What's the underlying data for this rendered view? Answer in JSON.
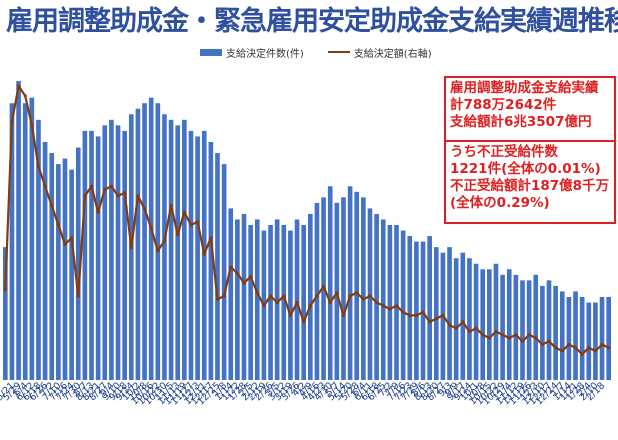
{
  "title": "雇用調整助成金・緊急雇用安定助成金支給実績週推移",
  "legend": {
    "bars": "支給決定件数(件)",
    "line": "支給決定額(右軸)"
  },
  "notes": {
    "box1": [
      "雇用調整助成金支給実績",
      "計788万2642件",
      "支給額計6兆3507億円"
    ],
    "box2": [
      "うち不正受給件数",
      "1221件(全体の0.01%)",
      "不正受給額計187億8千万",
      "(全体の0.29%)"
    ]
  },
  "colors": {
    "title": "#2f4f9f",
    "bar": "#4472c4",
    "line": "#843c0c",
    "note": "#e02020"
  },
  "chart_data": {
    "type": "bar",
    "x": [
      "5/15",
      "5/22",
      "5/29",
      "6/4",
      "6/12",
      "6/18",
      "6/26",
      "7/2",
      "7/10",
      "7/16",
      "7/24",
      "7/30",
      "8/7",
      "8/13",
      "8/21",
      "8/27",
      "9/4",
      "9/10",
      "9/18",
      "9/24",
      "10/2",
      "10/8",
      "10/16",
      "10/22",
      "10/30",
      "11/5",
      "11/13",
      "11/19",
      "11/27",
      "12/3",
      "12/11",
      "12/17",
      "12/25",
      "1/8",
      "1/14",
      "1/22",
      "1/28",
      "2/5",
      "2/12",
      "2/19",
      "2/26",
      "3/5",
      "3/12",
      "3/19",
      "3/26",
      "4/2",
      "4/9",
      "4/16",
      "4/23",
      "4/30",
      "5/7",
      "5/14",
      "5/20",
      "5/28",
      "6/4",
      "6/11",
      "6/18",
      "6/25",
      "7/2",
      "7/9",
      "7/16",
      "7/23",
      "7/29",
      "8/6",
      "8/13",
      "8/20",
      "8/27",
      "9/3",
      "9/9",
      "9/17",
      "9/24",
      "10/1",
      "10/8",
      "10/15",
      "10/22",
      "10/29",
      "11/4",
      "11/12",
      "11/19",
      "11/26",
      "12/3",
      "12/10",
      "12/17",
      "12/24",
      "1/7",
      "1/14",
      "1/21",
      "1/28",
      "2/4",
      "2/10",
      "2/18",
      "2/25"
    ],
    "tick_labels": [
      "5/21",
      "5/29",
      "6/4",
      "6/12",
      "6/18",
      "6/26",
      "7/2",
      "7/10",
      "7/16",
      "7/24",
      "7/30",
      "8/7",
      "8/13",
      "8/21",
      "8/27",
      "9/4",
      "9/10",
      "9/18",
      "9/24",
      "10/2",
      "10/8",
      "10/16",
      "10/22",
      "10/30",
      "11/5",
      "11/13",
      "11/19",
      "11/27",
      "12/3",
      "12/11",
      "12/17",
      "12/25",
      "1/8",
      "1/14",
      "1/22",
      "1/28",
      "2/5",
      "2/12",
      "2/19",
      "2/26",
      "3/5",
      "3/12",
      "3/19",
      "3/26",
      "4/2",
      "4/9",
      "4/16",
      "4/23",
      "4/30",
      "5/7",
      "5/14",
      "5/20",
      "5/28",
      "6/4",
      "6/11",
      "6/18",
      "6/25",
      "7/2",
      "7/9",
      "7/16",
      "7/23",
      "7/29",
      "8/6",
      "8/13",
      "8/20",
      "8/27",
      "9/3",
      "9/9",
      "9/17",
      "9/24",
      "10/1",
      "10/8",
      "10/15",
      "10/22",
      "10/29",
      "11/4",
      "11/12",
      "11/19",
      "11/26",
      "12/3",
      "12/10",
      "12/17",
      "12/24",
      "1/7",
      "1/14",
      "1/21",
      "1/28",
      "2/4",
      "2/10",
      "2/18"
    ],
    "series": [
      {
        "name": "支給決定件数(件)",
        "type": "bar",
        "axis": "left",
        "values": [
          48000,
          100000,
          108000,
          100000,
          102000,
          94000,
          86000,
          82000,
          78000,
          80000,
          76000,
          84000,
          90000,
          90000,
          88000,
          92000,
          94000,
          92000,
          90000,
          96000,
          98000,
          100000,
          102000,
          100000,
          96000,
          94000,
          92000,
          94000,
          90000,
          88000,
          90000,
          86000,
          82000,
          78000,
          62000,
          58000,
          60000,
          56000,
          58000,
          54000,
          56000,
          58000,
          56000,
          54000,
          58000,
          56000,
          60000,
          64000,
          66000,
          70000,
          64000,
          66000,
          70000,
          68000,
          66000,
          62000,
          60000,
          58000,
          56000,
          56000,
          54000,
          52000,
          50000,
          50000,
          52000,
          48000,
          46000,
          48000,
          44000,
          46000,
          44000,
          42000,
          40000,
          40000,
          42000,
          38000,
          40000,
          38000,
          36000,
          36000,
          38000,
          34000,
          36000,
          34000,
          32000,
          30000,
          32000,
          30000,
          28000,
          28000,
          30000,
          30000
        ]
      },
      {
        "name": "支給決定額(右軸)",
        "type": "line",
        "axis": "right",
        "values": [
          280,
          800,
          910,
          880,
          790,
          660,
          600,
          540,
          480,
          420,
          440,
          260,
          570,
          600,
          520,
          590,
          600,
          570,
          580,
          410,
          570,
          530,
          470,
          400,
          430,
          540,
          450,
          520,
          480,
          490,
          390,
          440,
          250,
          260,
          350,
          330,
          300,
          320,
          270,
          230,
          260,
          240,
          260,
          200,
          240,
          180,
          230,
          260,
          290,
          240,
          270,
          200,
          260,
          270,
          250,
          260,
          240,
          230,
          220,
          230,
          210,
          200,
          200,
          210,
          180,
          190,
          200,
          170,
          160,
          180,
          150,
          160,
          140,
          130,
          150,
          140,
          130,
          140,
          120,
          140,
          130,
          110,
          120,
          100,
          90,
          110,
          100,
          80,
          100,
          90,
          110,
          100
        ]
      }
    ],
    "grid": false,
    "legend": "top"
  }
}
